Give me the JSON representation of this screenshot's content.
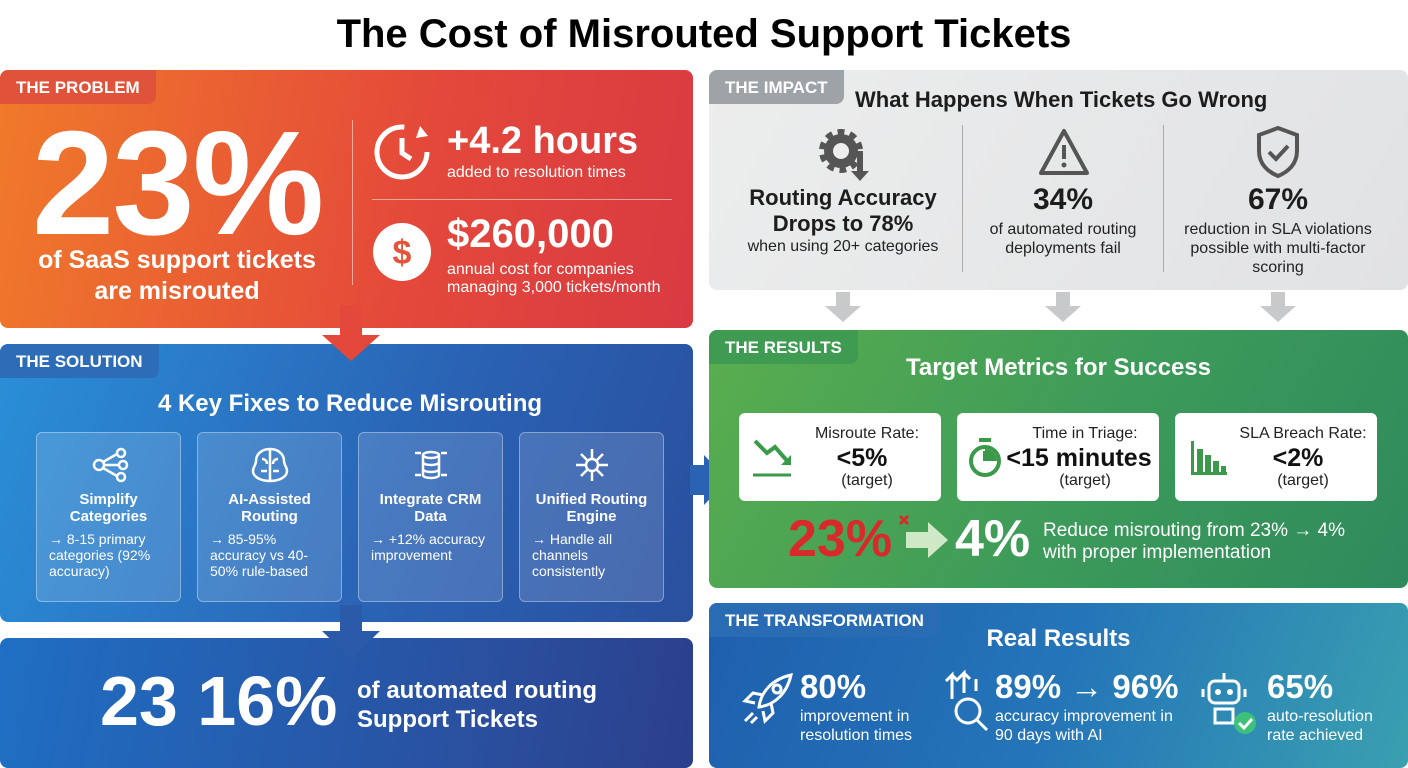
{
  "title": "The Cost of Misrouted Support Tickets",
  "problem": {
    "label": "THE PROBLEM",
    "big": "23%",
    "big_text": "of SaaS support tickets are misrouted",
    "stats": [
      {
        "value": "+4.2 hours",
        "desc": "added to resolution times"
      },
      {
        "value": "$260,000",
        "desc": "annual cost for companies managing 3,000 tickets/month"
      }
    ]
  },
  "solution": {
    "label": "THE SOLUTION",
    "heading": "4 Key Fixes to Reduce Misrouting",
    "cards": [
      {
        "title": "Simplify Categories",
        "detail": "→ 8-15 primary categories (92% accuracy)"
      },
      {
        "title": "AI-Assisted Routing",
        "detail": "→ 85-95% accuracy vs 40-50% rule-based"
      },
      {
        "title": "Integrate CRM Data",
        "detail": "→ +12% accuracy improvement"
      },
      {
        "title": "Unified Routing Engine",
        "detail": "→ Handle all channels consistently"
      }
    ]
  },
  "bottom": {
    "big": "23 16%",
    "text": "of automated routing Support Tickets"
  },
  "impact": {
    "label": "THE IMPACT",
    "heading": "What Happens When Tickets Go Wrong",
    "items": [
      {
        "value": "Routing Accuracy Drops to 78%",
        "desc": "when using 20+ categories"
      },
      {
        "value": "34%",
        "desc": "of automated routing deployments fail"
      },
      {
        "value": "67%",
        "desc": "reduction in SLA violations possible with multi-factor scoring"
      }
    ]
  },
  "results": {
    "label": "THE RESULTS",
    "heading": "Target Metrics for Success",
    "metrics": [
      {
        "label": "Misroute Rate:",
        "value": "<5%",
        "note": "(target)"
      },
      {
        "label": "Time in Triage:",
        "value": "<15 minutes",
        "note": "(target)"
      },
      {
        "label": "SLA Breach Rate:",
        "value": "<2%",
        "note": "(target)"
      }
    ],
    "from": "23%",
    "to": "4%",
    "text": "Reduce misrouting from 23% → 4% with proper implementation"
  },
  "transformation": {
    "label": "THE TRANSFORMATION",
    "heading": "Real Results",
    "items": [
      {
        "value": "80%",
        "desc": "improvement in resolution times"
      },
      {
        "value": "89% → 96%",
        "desc": "accuracy improvement in 90 days with AI"
      },
      {
        "value": "65%",
        "desc": "auto-resolution rate achieved"
      }
    ]
  }
}
